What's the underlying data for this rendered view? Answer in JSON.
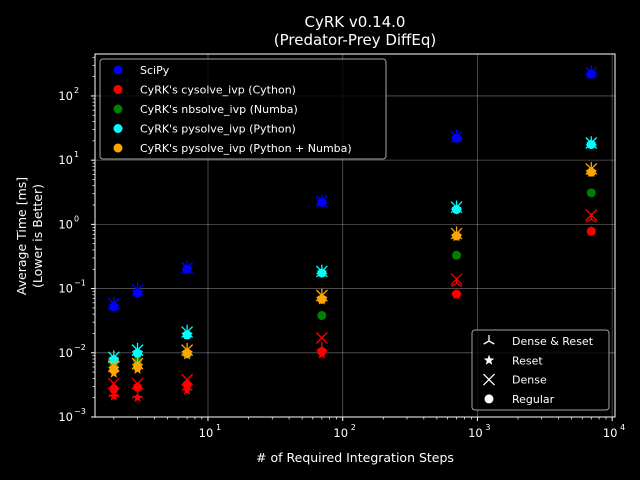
{
  "chart_data": {
    "type": "scatter",
    "title": "CyRK v0.14.0",
    "subtitle": "(Predator-Prey DiffEq)",
    "xlabel": "# of Required Integration Steps",
    "ylabel": "Average Time [ms]",
    "ylabel2": "(Lower is Better)",
    "x_scale": "log",
    "y_scale": "log",
    "xlim": [
      1.45,
      10500
    ],
    "ylim": [
      0.001,
      450
    ],
    "grid": true,
    "legend_placement": "upper-left",
    "marker_legend_placement": "lower-right",
    "x_ticks": [
      {
        "value": 10,
        "label": "10"
      },
      {
        "value": 100,
        "label": "10"
      },
      {
        "value": 1000,
        "label": "10"
      },
      {
        "value": 10000,
        "label": "10"
      }
    ],
    "x_tick_exponents": [
      "1",
      "2",
      "3",
      "4"
    ],
    "y_ticks": [
      {
        "value": 0.001,
        "label": "10",
        "exp": "−3"
      },
      {
        "value": 0.01,
        "label": "10",
        "exp": "−2"
      },
      {
        "value": 0.1,
        "label": "10",
        "exp": "−1"
      },
      {
        "value": 1,
        "label": "10",
        "exp": "0"
      },
      {
        "value": 10,
        "label": "10",
        "exp": "1"
      },
      {
        "value": 100,
        "label": "10",
        "exp": "2"
      }
    ],
    "series": [
      {
        "name": "SciPy",
        "color": "#0000ff",
        "x": [
          2,
          3,
          7,
          70,
          700,
          7000
        ],
        "regular": [
          0.052,
          0.085,
          0.2,
          2.2,
          22,
          220
        ],
        "dense": [
          0.058,
          0.095,
          0.21,
          2.3,
          23,
          230
        ],
        "reset": [
          0.053,
          0.087,
          0.2,
          2.2,
          22,
          220
        ],
        "dense_reset": [
          0.06,
          0.1,
          0.22,
          2.35,
          24,
          240
        ]
      },
      {
        "name": "CyRK's cysolve_ivp (Cython)",
        "color": "#ff0000",
        "x": [
          2,
          3,
          7,
          70,
          700,
          7000
        ],
        "regular": [
          0.0027,
          0.0029,
          0.0032,
          0.0105,
          0.082,
          0.78
        ],
        "dense": [
          0.0033,
          0.0033,
          0.0038,
          0.017,
          0.14,
          1.4
        ],
        "reset": [
          0.0021,
          0.002,
          0.0026,
          0.0095,
          0.08,
          0.78
        ],
        "dense_reset": [
          0.0023,
          0.0022,
          0.0029,
          0.012,
          0.12,
          1.2
        ]
      },
      {
        "name": "CyRK's nbsolve_ivp (Numba)",
        "color": "#008000",
        "x": [
          2,
          3,
          7,
          70,
          700,
          7000
        ],
        "regular": [
          0.0065,
          0.0075,
          0.0095,
          0.038,
          0.33,
          3.1
        ]
      },
      {
        "name": "CyRK's pysolve_ivp (Python)",
        "color": "#00ffff",
        "x": [
          2,
          3,
          7,
          70,
          700,
          7000
        ],
        "regular": [
          0.0078,
          0.0098,
          0.019,
          0.175,
          1.7,
          17.5
        ],
        "dense": [
          0.0085,
          0.011,
          0.021,
          0.185,
          1.85,
          18.5
        ],
        "reset": [
          0.008,
          0.01,
          0.019,
          0.178,
          1.75,
          17.8
        ],
        "dense_reset": [
          0.0088,
          0.0115,
          0.022,
          0.19,
          1.9,
          19
        ]
      },
      {
        "name": "CyRK's pysolve_ivp (Python + Numba)",
        "color": "#ffa500",
        "x": [
          2,
          3,
          7,
          70,
          700,
          7000
        ],
        "regular": [
          0.0055,
          0.006,
          0.0098,
          0.068,
          0.66,
          6.5
        ],
        "dense": [
          0.0062,
          0.0068,
          0.011,
          0.078,
          0.72,
          7.3
        ],
        "reset": [
          0.0048,
          0.0055,
          0.0092,
          0.066,
          0.64,
          6.4
        ],
        "dense_reset": [
          0.0065,
          0.0072,
          0.0115,
          0.08,
          0.75,
          7.5
        ]
      }
    ],
    "marker_legend": [
      {
        "label": "Dense & Reset",
        "marker": "tri"
      },
      {
        "label": "Reset",
        "marker": "star"
      },
      {
        "label": "Dense",
        "marker": "x"
      },
      {
        "label": "Regular",
        "marker": "circle"
      }
    ]
  }
}
